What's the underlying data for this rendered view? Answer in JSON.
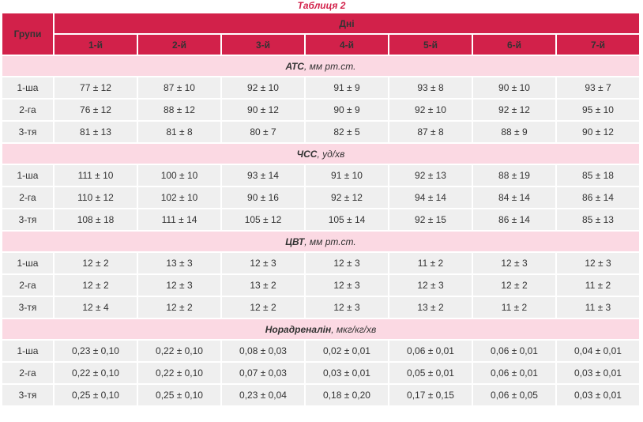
{
  "caption": "Таблиця 2",
  "header": {
    "groups_label": "Групи",
    "days_label": "Дні",
    "days": [
      "1-й",
      "2-й",
      "3-й",
      "4-й",
      "5-й",
      "6-й",
      "7-й"
    ]
  },
  "sections": [
    {
      "title": "АТС",
      "unit": ", мм рт.ст.",
      "rows": [
        {
          "group": "1-ша",
          "values": [
            "77 ± 12",
            "87 ± 10",
            "92 ± 10",
            "91 ± 9",
            "93 ± 8",
            "90 ± 10",
            "93 ± 7"
          ]
        },
        {
          "group": "2-га",
          "values": [
            "76 ± 12",
            "88 ± 12",
            "90 ± 12",
            "90 ± 9",
            "92 ± 10",
            "92 ± 12",
            "95 ± 10"
          ]
        },
        {
          "group": "3-тя",
          "values": [
            "81 ± 13",
            "81 ± 8",
            "80 ± 7",
            "82 ± 5",
            "87 ± 8",
            "88 ± 9",
            "90 ± 12"
          ]
        }
      ]
    },
    {
      "title": "ЧСС",
      "unit": ", уд/хв",
      "rows": [
        {
          "group": "1-ша",
          "values": [
            "111 ± 10",
            "100 ± 10",
            "93 ± 14",
            "91 ± 10",
            "92 ± 13",
            "88 ± 19",
            "85 ± 18"
          ]
        },
        {
          "group": "2-га",
          "values": [
            "110 ± 12",
            "102 ± 10",
            "90 ± 16",
            "92 ± 12",
            "94 ± 14",
            "84 ± 14",
            "86 ± 14"
          ]
        },
        {
          "group": "3-тя",
          "values": [
            "108 ± 18",
            "111 ± 14",
            "105 ± 12",
            "105 ± 14",
            "92 ± 15",
            "86 ± 14",
            "85 ± 13"
          ]
        }
      ]
    },
    {
      "title": "ЦВТ",
      "unit": ", мм рт.ст.",
      "rows": [
        {
          "group": "1-ша",
          "values": [
            "12 ± 2",
            "13 ± 3",
            "12 ± 3",
            "12 ± 3",
            "11 ± 2",
            "12 ± 3",
            "12 ± 3"
          ]
        },
        {
          "group": "2-га",
          "values": [
            "12 ± 2",
            "12 ± 3",
            "13 ± 2",
            "12 ± 3",
            "12 ± 3",
            "12 ± 2",
            "11 ± 2"
          ]
        },
        {
          "group": "3-тя",
          "values": [
            "12 ± 4",
            "12 ± 2",
            "12 ± 2",
            "12 ± 3",
            "13 ± 2",
            "11 ± 2",
            "11 ± 3"
          ]
        }
      ]
    },
    {
      "title": "Норадреналін",
      "unit": ", мкг/кг/хв",
      "rows": [
        {
          "group": "1-ша",
          "values": [
            "0,23 ± 0,10",
            "0,22 ± 0,10",
            "0,08 ± 0,03",
            "0,02 ± 0,01",
            "0,06 ± 0,01",
            "0,06 ± 0,01",
            "0,04 ± 0,01"
          ]
        },
        {
          "group": "2-га",
          "values": [
            "0,22 ± 0,10",
            "0,22 ± 0,10",
            "0,07 ± 0,03",
            "0,03 ± 0,01",
            "0,05 ± 0,01",
            "0,06 ± 0,01",
            "0,03 ± 0,01"
          ]
        },
        {
          "group": "3-тя",
          "values": [
            "0,25 ± 0,10",
            "0,25 ± 0,10",
            "0,23 ± 0,04",
            "0,18 ± 0,20",
            "0,17 ± 0,15",
            "0,06 ± 0,05",
            "0,03 ± 0,01"
          ]
        }
      ]
    }
  ]
}
